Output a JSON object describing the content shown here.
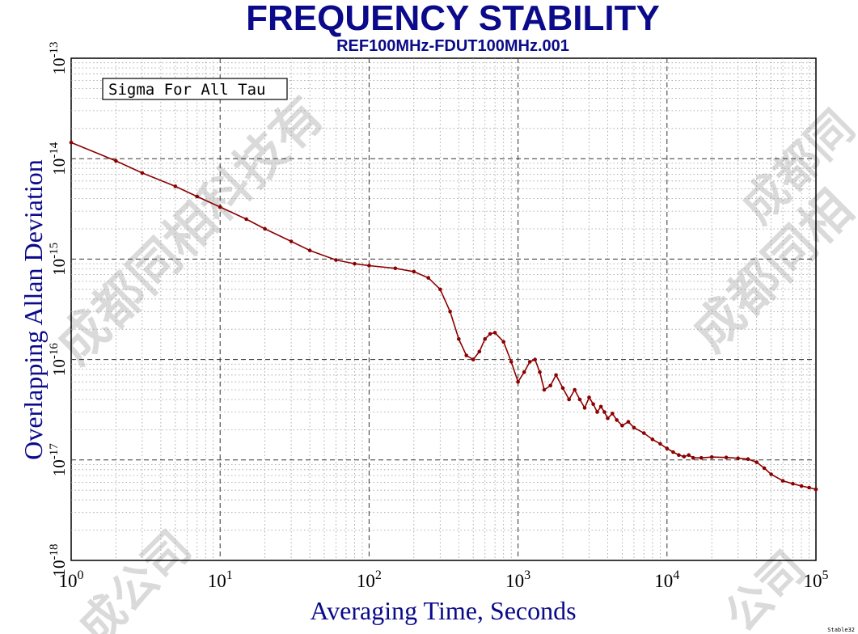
{
  "chart_data": {
    "type": "line",
    "title": "FREQUENCY STABILITY",
    "subtitle": "REF100MHz-FDUT100MHz.001",
    "xlabel": "Averaging Time, Seconds",
    "ylabel": "Overlapping Allan Deviation",
    "xscale": "log",
    "yscale": "log",
    "xlim": [
      1,
      100000
    ],
    "ylim": [
      1e-18,
      1e-13
    ],
    "x_ticks": [
      "10^0",
      "10^1",
      "10^2",
      "10^3",
      "10^4",
      "10^5"
    ],
    "y_ticks": [
      "10^-18",
      "10^-17",
      "10^-16",
      "10^-15",
      "10^-14",
      "10^-13"
    ],
    "grid": true,
    "legend": "Sigma For All Tau",
    "series": [
      {
        "name": "Overlapping Allan Deviation",
        "color": "#8b0000",
        "x": [
          1,
          2,
          3,
          5,
          7,
          10,
          15,
          20,
          30,
          40,
          60,
          80,
          100,
          150,
          200,
          250,
          300,
          350,
          400,
          450,
          500,
          550,
          600,
          650,
          700,
          800,
          900,
          1000,
          1100,
          1200,
          1300,
          1400,
          1500,
          1650,
          1800,
          2000,
          2200,
          2400,
          2600,
          2800,
          3000,
          3200,
          3400,
          3600,
          3800,
          4000,
          4300,
          4600,
          5000,
          5500,
          6000,
          7000,
          8000,
          9000,
          10000,
          11000,
          12000,
          13000,
          14000,
          15000,
          17000,
          20000,
          25000,
          30000,
          35000,
          40000,
          45000,
          50000,
          60000,
          70000,
          80000,
          90000,
          100000
        ],
        "values": [
          1.45e-14,
          9.5e-15,
          7.2e-15,
          5.3e-15,
          4.2e-15,
          3.3e-15,
          2.5e-15,
          2e-15,
          1.5e-15,
          1.22e-15,
          9.8e-16,
          9e-16,
          8.6e-16,
          8.1e-16,
          7.5e-16,
          6.5e-16,
          5e-16,
          3e-16,
          1.6e-16,
          1.1e-16,
          1e-16,
          1.2e-16,
          1.6e-16,
          1.8e-16,
          1.85e-16,
          1.5e-16,
          9.5e-17,
          6e-17,
          7.5e-17,
          9.5e-17,
          1e-16,
          7.5e-17,
          5e-17,
          5.5e-17,
          7e-17,
          5.2e-17,
          4e-17,
          5e-17,
          4e-17,
          3.3e-17,
          4.2e-17,
          3.6e-17,
          3e-17,
          3.4e-17,
          3e-17,
          2.6e-17,
          2.9e-17,
          2.5e-17,
          2.2e-17,
          2.4e-17,
          2.1e-17,
          1.85e-17,
          1.6e-17,
          1.45e-17,
          1.3e-17,
          1.2e-17,
          1.12e-17,
          1.08e-17,
          1.12e-17,
          1.05e-17,
          1.05e-17,
          1.07e-17,
          1.06e-17,
          1.04e-17,
          1.02e-17,
          9.5e-18,
          8.3e-18,
          7.2e-18,
          6.2e-18,
          5.8e-18,
          5.5e-18,
          5.3e-18,
          5.1e-18
        ]
      }
    ]
  },
  "watermarks": [
    "成都同相科技有",
    "成都同相",
    "成都同",
    "成公司",
    "公司"
  ],
  "footer": {
    "corner_label": "Stable32"
  }
}
